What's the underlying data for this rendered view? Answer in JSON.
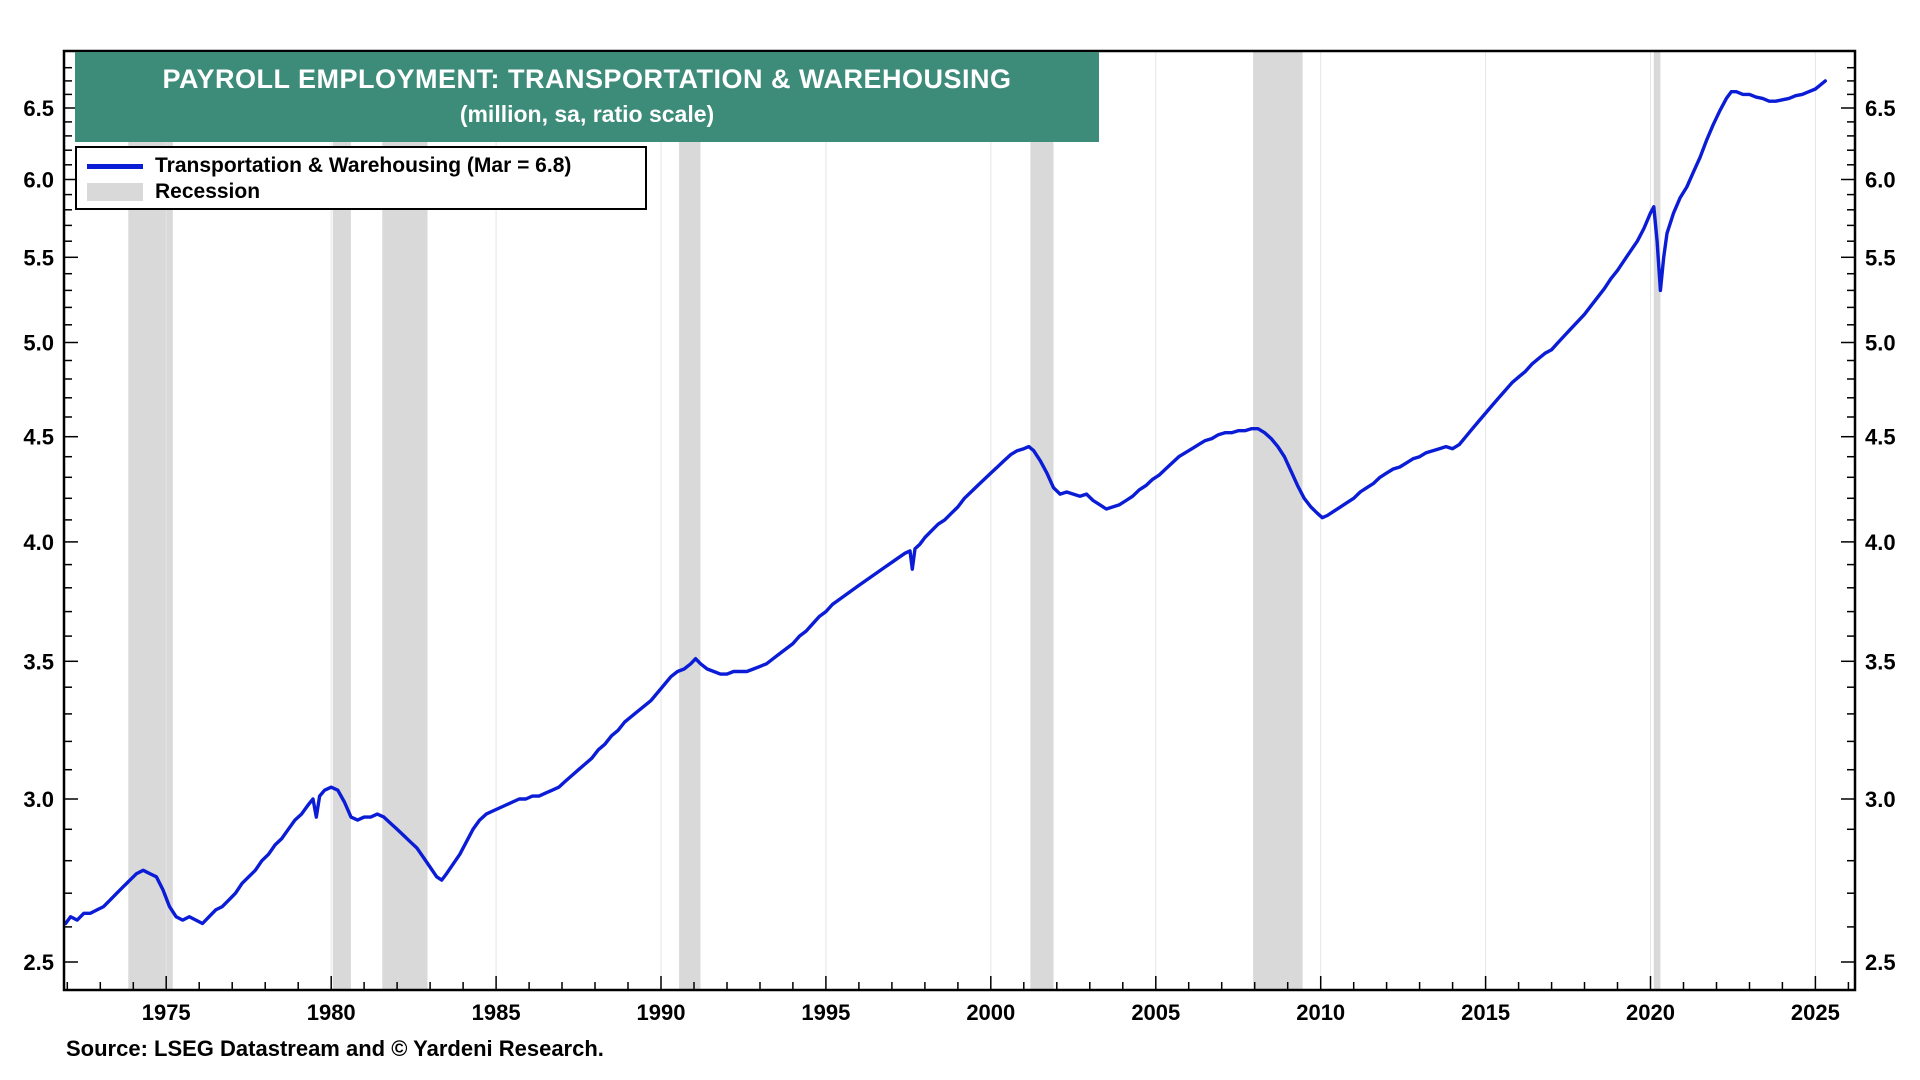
{
  "chart_data": {
    "type": "line",
    "title": "PAYROLL EMPLOYMENT: TRANSPORTATION & WAREHOUSING",
    "subtitle": "(million, sa, ratio scale)",
    "recession_label": "Recession",
    "source": "Source: LSEG Datastream and © Yardeni Research.",
    "yscale": "log",
    "ylabel": "",
    "xlabel": "",
    "xlim": [
      1971.9,
      2026.2
    ],
    "ylim": [
      2.5,
      6.8
    ],
    "xticks": [
      1975,
      1980,
      1985,
      1990,
      1995,
      2000,
      2005,
      2010,
      2015,
      2020,
      2025
    ],
    "yticks": [
      2.5,
      3.0,
      3.5,
      4.0,
      4.5,
      5.0,
      5.5,
      6.0,
      6.5
    ],
    "grid": "vertical-only",
    "legend_position": "top-left",
    "colors": {
      "line": "#0b1cd6",
      "recession": "#d9d9d9",
      "title_bg": "#3d8b79",
      "grid": "#e5e5e5",
      "frame": "#000000",
      "text": "#000000"
    },
    "recession_bands": [
      [
        1973.85,
        1975.2
      ],
      [
        1980.05,
        1980.6
      ],
      [
        1981.55,
        1982.92
      ],
      [
        1990.55,
        1991.2
      ],
      [
        2001.2,
        2001.9
      ],
      [
        2007.95,
        2009.45
      ],
      [
        2020.1,
        2020.3
      ]
    ],
    "series": [
      {
        "name": "Transportation & Warehousing (Mar = 6.8)",
        "points": [
          [
            1971.95,
            2.61
          ],
          [
            1972.1,
            2.63
          ],
          [
            1972.3,
            2.62
          ],
          [
            1972.5,
            2.64
          ],
          [
            1972.7,
            2.64
          ],
          [
            1972.9,
            2.65
          ],
          [
            1973.1,
            2.66
          ],
          [
            1973.3,
            2.68
          ],
          [
            1973.5,
            2.7
          ],
          [
            1973.7,
            2.72
          ],
          [
            1973.9,
            2.74
          ],
          [
            1974.1,
            2.76
          ],
          [
            1974.3,
            2.77
          ],
          [
            1974.5,
            2.76
          ],
          [
            1974.7,
            2.75
          ],
          [
            1974.9,
            2.71
          ],
          [
            1975.1,
            2.66
          ],
          [
            1975.3,
            2.63
          ],
          [
            1975.5,
            2.62
          ],
          [
            1975.7,
            2.63
          ],
          [
            1975.9,
            2.62
          ],
          [
            1976.1,
            2.61
          ],
          [
            1976.3,
            2.63
          ],
          [
            1976.5,
            2.65
          ],
          [
            1976.7,
            2.66
          ],
          [
            1976.9,
            2.68
          ],
          [
            1977.1,
            2.7
          ],
          [
            1977.3,
            2.73
          ],
          [
            1977.5,
            2.75
          ],
          [
            1977.7,
            2.77
          ],
          [
            1977.9,
            2.8
          ],
          [
            1978.1,
            2.82
          ],
          [
            1978.3,
            2.85
          ],
          [
            1978.5,
            2.87
          ],
          [
            1978.7,
            2.9
          ],
          [
            1978.9,
            2.93
          ],
          [
            1979.1,
            2.95
          ],
          [
            1979.3,
            2.98
          ],
          [
            1979.45,
            3.0
          ],
          [
            1979.55,
            2.94
          ],
          [
            1979.65,
            3.01
          ],
          [
            1979.8,
            3.03
          ],
          [
            1980.0,
            3.04
          ],
          [
            1980.2,
            3.03
          ],
          [
            1980.4,
            2.99
          ],
          [
            1980.6,
            2.94
          ],
          [
            1980.8,
            2.93
          ],
          [
            1981.0,
            2.94
          ],
          [
            1981.2,
            2.94
          ],
          [
            1981.4,
            2.95
          ],
          [
            1981.6,
            2.94
          ],
          [
            1981.8,
            2.92
          ],
          [
            1982.0,
            2.9
          ],
          [
            1982.2,
            2.88
          ],
          [
            1982.4,
            2.86
          ],
          [
            1982.6,
            2.84
          ],
          [
            1982.8,
            2.81
          ],
          [
            1983.0,
            2.78
          ],
          [
            1983.2,
            2.75
          ],
          [
            1983.35,
            2.74
          ],
          [
            1983.5,
            2.76
          ],
          [
            1983.7,
            2.79
          ],
          [
            1983.9,
            2.82
          ],
          [
            1984.1,
            2.86
          ],
          [
            1984.3,
            2.9
          ],
          [
            1984.5,
            2.93
          ],
          [
            1984.7,
            2.95
          ],
          [
            1984.9,
            2.96
          ],
          [
            1985.1,
            2.97
          ],
          [
            1985.3,
            2.98
          ],
          [
            1985.5,
            2.99
          ],
          [
            1985.7,
            3.0
          ],
          [
            1985.9,
            3.0
          ],
          [
            1986.1,
            3.01
          ],
          [
            1986.3,
            3.01
          ],
          [
            1986.5,
            3.02
          ],
          [
            1986.7,
            3.03
          ],
          [
            1986.9,
            3.04
          ],
          [
            1987.1,
            3.06
          ],
          [
            1987.3,
            3.08
          ],
          [
            1987.5,
            3.1
          ],
          [
            1987.7,
            3.12
          ],
          [
            1987.9,
            3.14
          ],
          [
            1988.1,
            3.17
          ],
          [
            1988.3,
            3.19
          ],
          [
            1988.5,
            3.22
          ],
          [
            1988.7,
            3.24
          ],
          [
            1988.9,
            3.27
          ],
          [
            1989.1,
            3.29
          ],
          [
            1989.3,
            3.31
          ],
          [
            1989.5,
            3.33
          ],
          [
            1989.7,
            3.35
          ],
          [
            1989.9,
            3.38
          ],
          [
            1990.1,
            3.41
          ],
          [
            1990.3,
            3.44
          ],
          [
            1990.5,
            3.46
          ],
          [
            1990.7,
            3.47
          ],
          [
            1990.9,
            3.49
          ],
          [
            1991.05,
            3.51
          ],
          [
            1991.2,
            3.49
          ],
          [
            1991.4,
            3.47
          ],
          [
            1991.6,
            3.46
          ],
          [
            1991.8,
            3.45
          ],
          [
            1992.0,
            3.45
          ],
          [
            1992.2,
            3.46
          ],
          [
            1992.4,
            3.46
          ],
          [
            1992.6,
            3.46
          ],
          [
            1992.8,
            3.47
          ],
          [
            1993.0,
            3.48
          ],
          [
            1993.2,
            3.49
          ],
          [
            1993.4,
            3.51
          ],
          [
            1993.6,
            3.53
          ],
          [
            1993.8,
            3.55
          ],
          [
            1994.0,
            3.57
          ],
          [
            1994.2,
            3.6
          ],
          [
            1994.4,
            3.62
          ],
          [
            1994.6,
            3.65
          ],
          [
            1994.8,
            3.68
          ],
          [
            1995.0,
            3.7
          ],
          [
            1995.2,
            3.73
          ],
          [
            1995.4,
            3.75
          ],
          [
            1995.6,
            3.77
          ],
          [
            1995.8,
            3.79
          ],
          [
            1996.0,
            3.81
          ],
          [
            1996.2,
            3.83
          ],
          [
            1996.4,
            3.85
          ],
          [
            1996.6,
            3.87
          ],
          [
            1996.8,
            3.89
          ],
          [
            1997.0,
            3.91
          ],
          [
            1997.2,
            3.93
          ],
          [
            1997.4,
            3.95
          ],
          [
            1997.55,
            3.96
          ],
          [
            1997.62,
            3.88
          ],
          [
            1997.7,
            3.97
          ],
          [
            1997.85,
            3.99
          ],
          [
            1998.0,
            4.02
          ],
          [
            1998.2,
            4.05
          ],
          [
            1998.4,
            4.08
          ],
          [
            1998.6,
            4.1
          ],
          [
            1998.8,
            4.13
          ],
          [
            1999.0,
            4.16
          ],
          [
            1999.2,
            4.2
          ],
          [
            1999.4,
            4.23
          ],
          [
            1999.6,
            4.26
          ],
          [
            1999.8,
            4.29
          ],
          [
            2000.0,
            4.32
          ],
          [
            2000.2,
            4.35
          ],
          [
            2000.4,
            4.38
          ],
          [
            2000.6,
            4.41
          ],
          [
            2000.8,
            4.43
          ],
          [
            2001.0,
            4.44
          ],
          [
            2001.15,
            4.45
          ],
          [
            2001.3,
            4.43
          ],
          [
            2001.5,
            4.38
          ],
          [
            2001.7,
            4.32
          ],
          [
            2001.9,
            4.25
          ],
          [
            2002.1,
            4.22
          ],
          [
            2002.3,
            4.23
          ],
          [
            2002.5,
            4.22
          ],
          [
            2002.7,
            4.21
          ],
          [
            2002.9,
            4.22
          ],
          [
            2003.1,
            4.19
          ],
          [
            2003.3,
            4.17
          ],
          [
            2003.5,
            4.15
          ],
          [
            2003.7,
            4.16
          ],
          [
            2003.9,
            4.17
          ],
          [
            2004.1,
            4.19
          ],
          [
            2004.3,
            4.21
          ],
          [
            2004.5,
            4.24
          ],
          [
            2004.7,
            4.26
          ],
          [
            2004.9,
            4.29
          ],
          [
            2005.1,
            4.31
          ],
          [
            2005.3,
            4.34
          ],
          [
            2005.5,
            4.37
          ],
          [
            2005.7,
            4.4
          ],
          [
            2005.9,
            4.42
          ],
          [
            2006.1,
            4.44
          ],
          [
            2006.3,
            4.46
          ],
          [
            2006.5,
            4.48
          ],
          [
            2006.7,
            4.49
          ],
          [
            2006.9,
            4.51
          ],
          [
            2007.1,
            4.52
          ],
          [
            2007.3,
            4.52
          ],
          [
            2007.5,
            4.53
          ],
          [
            2007.7,
            4.53
          ],
          [
            2007.9,
            4.54
          ],
          [
            2008.1,
            4.54
          ],
          [
            2008.3,
            4.52
          ],
          [
            2008.5,
            4.49
          ],
          [
            2008.7,
            4.45
          ],
          [
            2008.9,
            4.4
          ],
          [
            2009.1,
            4.33
          ],
          [
            2009.3,
            4.26
          ],
          [
            2009.5,
            4.2
          ],
          [
            2009.7,
            4.16
          ],
          [
            2009.9,
            4.13
          ],
          [
            2010.05,
            4.11
          ],
          [
            2010.2,
            4.12
          ],
          [
            2010.4,
            4.14
          ],
          [
            2010.6,
            4.16
          ],
          [
            2010.8,
            4.18
          ],
          [
            2011.0,
            4.2
          ],
          [
            2011.2,
            4.23
          ],
          [
            2011.4,
            4.25
          ],
          [
            2011.6,
            4.27
          ],
          [
            2011.8,
            4.3
          ],
          [
            2012.0,
            4.32
          ],
          [
            2012.2,
            4.34
          ],
          [
            2012.4,
            4.35
          ],
          [
            2012.6,
            4.37
          ],
          [
            2012.8,
            4.39
          ],
          [
            2013.0,
            4.4
          ],
          [
            2013.2,
            4.42
          ],
          [
            2013.4,
            4.43
          ],
          [
            2013.6,
            4.44
          ],
          [
            2013.8,
            4.45
          ],
          [
            2014.0,
            4.44
          ],
          [
            2014.2,
            4.46
          ],
          [
            2014.4,
            4.5
          ],
          [
            2014.6,
            4.54
          ],
          [
            2014.8,
            4.58
          ],
          [
            2015.0,
            4.62
          ],
          [
            2015.2,
            4.66
          ],
          [
            2015.4,
            4.7
          ],
          [
            2015.6,
            4.74
          ],
          [
            2015.8,
            4.78
          ],
          [
            2016.0,
            4.81
          ],
          [
            2016.2,
            4.84
          ],
          [
            2016.4,
            4.88
          ],
          [
            2016.6,
            4.91
          ],
          [
            2016.8,
            4.94
          ],
          [
            2017.0,
            4.96
          ],
          [
            2017.2,
            5.0
          ],
          [
            2017.4,
            5.04
          ],
          [
            2017.6,
            5.08
          ],
          [
            2017.8,
            5.12
          ],
          [
            2018.0,
            5.16
          ],
          [
            2018.2,
            5.21
          ],
          [
            2018.4,
            5.26
          ],
          [
            2018.6,
            5.31
          ],
          [
            2018.8,
            5.37
          ],
          [
            2019.0,
            5.42
          ],
          [
            2019.2,
            5.48
          ],
          [
            2019.4,
            5.54
          ],
          [
            2019.6,
            5.6
          ],
          [
            2019.8,
            5.68
          ],
          [
            2020.0,
            5.78
          ],
          [
            2020.1,
            5.82
          ],
          [
            2020.2,
            5.6
          ],
          [
            2020.3,
            5.3
          ],
          [
            2020.4,
            5.5
          ],
          [
            2020.5,
            5.65
          ],
          [
            2020.7,
            5.78
          ],
          [
            2020.9,
            5.88
          ],
          [
            2021.1,
            5.95
          ],
          [
            2021.3,
            6.05
          ],
          [
            2021.5,
            6.15
          ],
          [
            2021.7,
            6.27
          ],
          [
            2021.9,
            6.38
          ],
          [
            2022.1,
            6.48
          ],
          [
            2022.3,
            6.57
          ],
          [
            2022.45,
            6.62
          ],
          [
            2022.6,
            6.62
          ],
          [
            2022.8,
            6.6
          ],
          [
            2023.0,
            6.6
          ],
          [
            2023.2,
            6.58
          ],
          [
            2023.4,
            6.57
          ],
          [
            2023.6,
            6.55
          ],
          [
            2023.8,
            6.55
          ],
          [
            2024.0,
            6.56
          ],
          [
            2024.2,
            6.57
          ],
          [
            2024.4,
            6.59
          ],
          [
            2024.6,
            6.6
          ],
          [
            2024.8,
            6.62
          ],
          [
            2025.0,
            6.64
          ],
          [
            2025.15,
            6.67
          ],
          [
            2025.3,
            6.7
          ]
        ]
      }
    ]
  }
}
